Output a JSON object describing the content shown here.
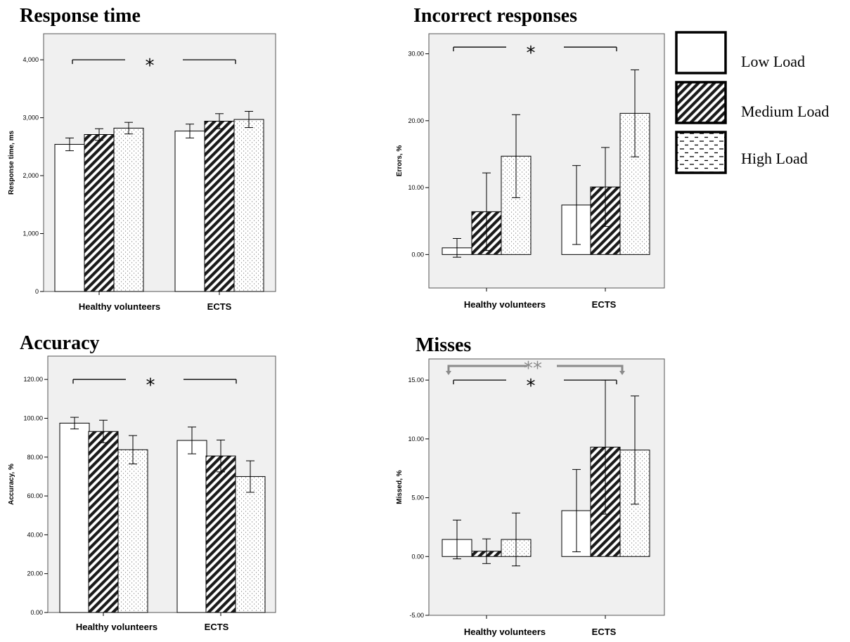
{
  "colors": {
    "panel_bg": "#f0f0f0",
    "bar_stroke": "#000000",
    "sig_gray": "#8a8a8a"
  },
  "legend": [
    {
      "label": "Low Load",
      "pattern": "solid-white"
    },
    {
      "label": "Medium Load",
      "pattern": "diagonal-hatch"
    },
    {
      "label": "High Load",
      "pattern": "dashed-lines"
    }
  ],
  "chart_data": [
    {
      "id": "rt",
      "type": "bar",
      "title": "Response time",
      "ylabel": "Response time, ms",
      "categories": [
        "Healthy volunteers",
        "ECTS"
      ],
      "ylim": [
        0,
        4450
      ],
      "yticks": [
        0,
        1000,
        2000,
        3000,
        4000
      ],
      "ytick_labels": [
        "0",
        "1,000",
        "2,000",
        "3,000",
        "4,000"
      ],
      "series": [
        {
          "name": "Low Load",
          "values": [
            2540,
            2770
          ],
          "err": [
            110,
            120
          ]
        },
        {
          "name": "Medium Load",
          "values": [
            2710,
            2940
          ],
          "err": [
            100,
            130
          ]
        },
        {
          "name": "High Load",
          "values": [
            2820,
            2970
          ],
          "err": [
            100,
            140
          ]
        }
      ],
      "significance": [
        {
          "symbol": "*",
          "y": 4000
        }
      ]
    },
    {
      "id": "err",
      "type": "bar",
      "title": "Incorrect responses",
      "ylabel": "Errors, %",
      "categories": [
        "Healthy volunteers",
        "ECTS"
      ],
      "ylim": [
        -5,
        33
      ],
      "yticks": [
        0,
        10,
        20,
        30
      ],
      "ytick_labels": [
        "0.00",
        "10.00",
        "20.00",
        "30.00"
      ],
      "series": [
        {
          "name": "Low Load",
          "values": [
            1.0,
            7.4
          ],
          "err": [
            1.4,
            5.9
          ]
        },
        {
          "name": "Medium Load",
          "values": [
            6.4,
            10.1
          ],
          "err": [
            5.8,
            5.9
          ]
        },
        {
          "name": "High Load",
          "values": [
            14.7,
            21.1
          ],
          "err": [
            6.2,
            6.5
          ]
        }
      ],
      "significance": [
        {
          "symbol": "*",
          "y": 31
        }
      ]
    },
    {
      "id": "acc",
      "type": "bar",
      "title": "Accuracy",
      "ylabel": "Accuracy, %",
      "categories": [
        "Healthy volunteers",
        "ECTS"
      ],
      "ylim": [
        0,
        132
      ],
      "yticks": [
        0,
        20,
        40,
        60,
        80,
        100,
        120
      ],
      "ytick_labels": [
        "0.00",
        "20.00",
        "40.00",
        "60.00",
        "80.00",
        "100.00",
        "120.00"
      ],
      "series": [
        {
          "name": "Low Load",
          "values": [
            97.5,
            88.6
          ],
          "err": [
            3.0,
            6.9
          ]
        },
        {
          "name": "Medium Load",
          "values": [
            93.2,
            80.6
          ],
          "err": [
            5.8,
            8.2
          ]
        },
        {
          "name": "High Load",
          "values": [
            83.8,
            70.0
          ],
          "err": [
            7.3,
            8.1
          ]
        }
      ],
      "significance": [
        {
          "symbol": "*",
          "y": 120
        }
      ]
    },
    {
      "id": "miss",
      "type": "bar",
      "title": "Misses",
      "ylabel": "Missed, %",
      "categories": [
        "Healthy volunteers",
        "ECTS"
      ],
      "ylim": [
        -5,
        16.8
      ],
      "yticks": [
        -5,
        0,
        5,
        10,
        15
      ],
      "ytick_labels": [
        "-5.00",
        "0.00",
        "5.00",
        "10.00",
        "15.00"
      ],
      "series": [
        {
          "name": "Low Load",
          "values": [
            1.45,
            3.9
          ],
          "err": [
            1.65,
            3.5
          ]
        },
        {
          "name": "Medium Load",
          "values": [
            0.45,
            9.3
          ],
          "err": [
            1.05,
            5.7
          ]
        },
        {
          "name": "High Load",
          "values": [
            1.45,
            9.05
          ],
          "err": [
            2.25,
            4.6
          ]
        }
      ],
      "significance": [
        {
          "symbol": "**",
          "y": 16.2,
          "style": "gray-arrows"
        },
        {
          "symbol": "*",
          "y": 15.0
        }
      ]
    }
  ]
}
